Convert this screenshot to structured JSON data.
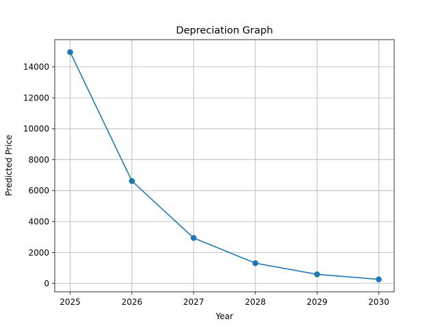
{
  "chart_data": {
    "type": "line",
    "title": "Depreciation Graph",
    "xlabel": "Year",
    "ylabel": "Predicted Price",
    "x": [
      2025,
      2026,
      2027,
      2028,
      2029,
      2030
    ],
    "series": [
      {
        "values": [
          14950,
          6620,
          2940,
          1310,
          590,
          265
        ],
        "color": "#1f77b4",
        "marker": "circle"
      }
    ],
    "xticks": [
      "2025",
      "2026",
      "2027",
      "2028",
      "2029",
      "2030"
    ],
    "yticks": [
      0,
      2000,
      4000,
      6000,
      8000,
      10000,
      12000,
      14000
    ],
    "xlim": [
      2024.75,
      2030.25
    ],
    "ylim": [
      -540,
      15760
    ],
    "grid": true,
    "legend": "none"
  }
}
